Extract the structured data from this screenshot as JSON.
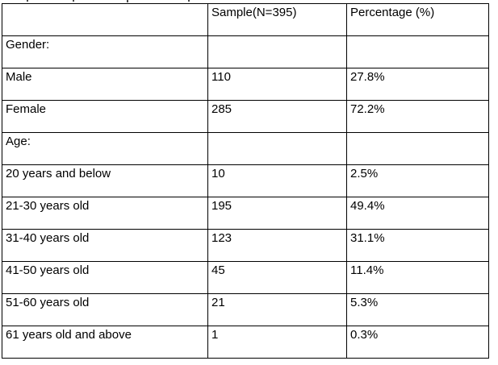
{
  "caption_fragment": {
    "note": "partially cut-off text line above table, only descender pixels visible"
  },
  "table": {
    "columns": [
      "",
      "Sample(N=395)",
      "Percentage (%)"
    ],
    "rows": [
      {
        "label": "Gender:",
        "sample": "",
        "percentage": ""
      },
      {
        "label": "Male",
        "sample": "110",
        "percentage": "27.8%"
      },
      {
        "label": "Female",
        "sample": "285",
        "percentage": "72.2%"
      },
      {
        "label": "Age:",
        "sample": "",
        "percentage": ""
      },
      {
        "label": "20 years and below",
        "sample": "10",
        "percentage": "2.5%"
      },
      {
        "label": "21-30 years old",
        "sample": "195",
        "percentage": "49.4%"
      },
      {
        "label": "31-40 years old",
        "sample": "123",
        "percentage": "31.1%"
      },
      {
        "label": "41-50 years old",
        "sample": "45",
        "percentage": "11.4%"
      },
      {
        "label": "51-60 years old",
        "sample": "21",
        "percentage": "5.3%"
      },
      {
        "label": "61 years old and above",
        "sample": "1",
        "percentage": "0.3%"
      }
    ],
    "colors": {
      "border": "#000000",
      "text": "#000000",
      "background": "#ffffff"
    }
  }
}
